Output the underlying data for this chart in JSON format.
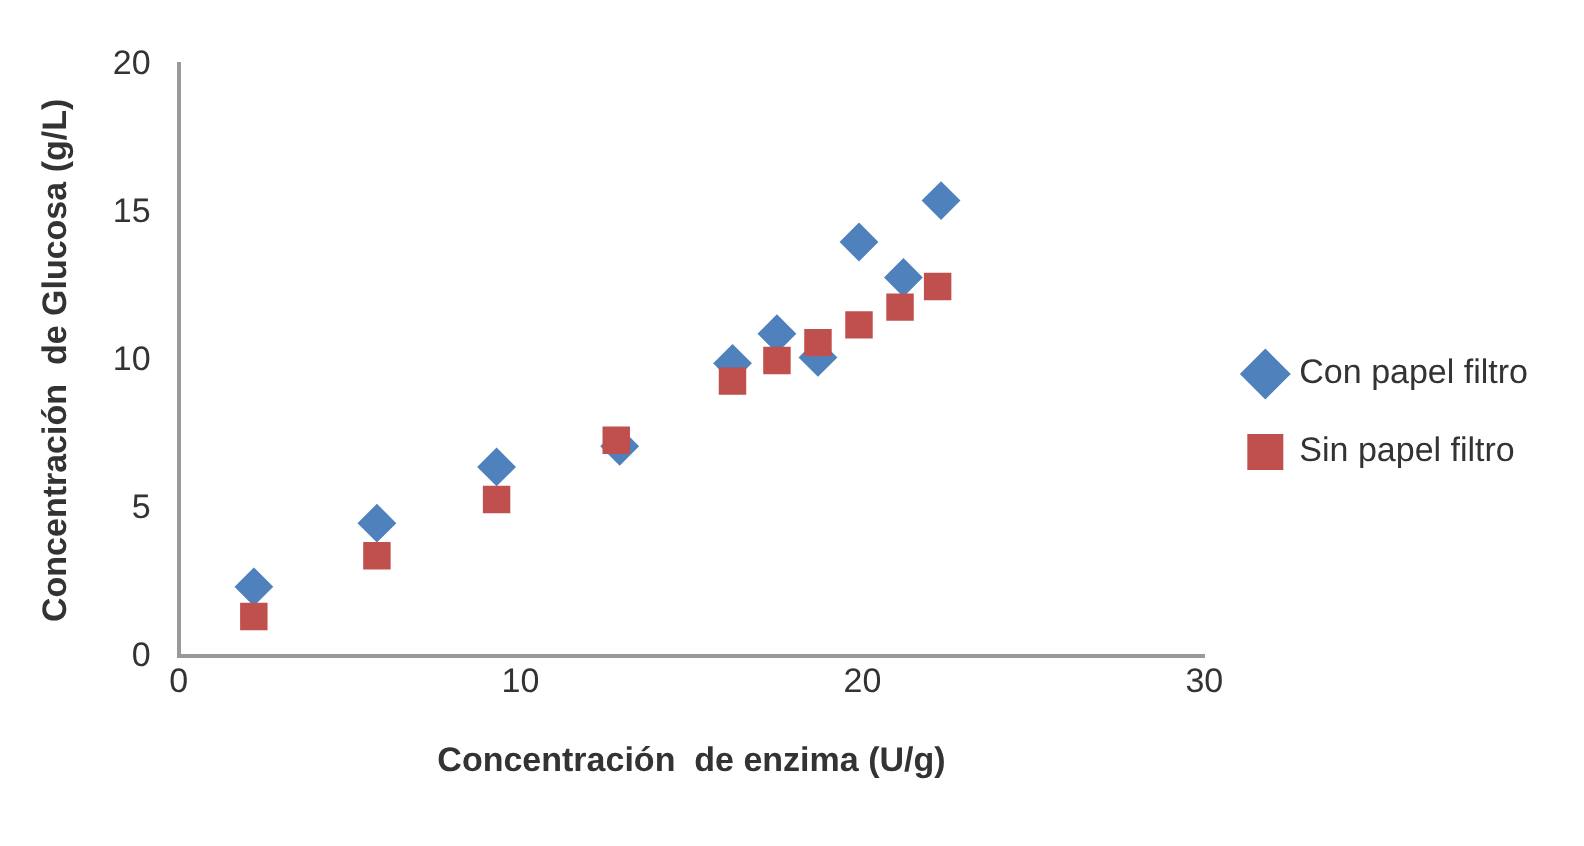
{
  "chart_data": {
    "type": "scatter",
    "xlabel": "Concentración  de enzima (U/g)",
    "ylabel": "Concentración  de Glucosa (g/L)",
    "xlim": [
      0,
      30
    ],
    "xticks": [
      0,
      10,
      20,
      30
    ],
    "ylim": [
      0,
      20
    ],
    "yticks": [
      0,
      5,
      10,
      15,
      20
    ],
    "grid": false,
    "legend": "right",
    "series": [
      {
        "name": "Con papel filtro",
        "color": "#4f81bd",
        "marker": "diamond",
        "x": [
          2.2,
          5.8,
          9.3,
          12.9,
          16.2,
          17.5,
          18.7,
          19.9,
          21.2,
          22.3
        ],
        "values": [
          2.35,
          4.5,
          6.4,
          7.1,
          9.9,
          10.9,
          10.1,
          14.0,
          12.8,
          15.4
        ]
      },
      {
        "name": "Sin papel filtro",
        "color": "#c0504d",
        "marker": "square",
        "x": [
          2.2,
          5.8,
          9.3,
          12.8,
          16.2,
          17.5,
          18.7,
          19.9,
          21.1,
          22.2
        ],
        "values": [
          1.35,
          3.4,
          5.3,
          7.3,
          9.3,
          10.0,
          10.6,
          11.2,
          11.8,
          12.5
        ]
      }
    ]
  }
}
